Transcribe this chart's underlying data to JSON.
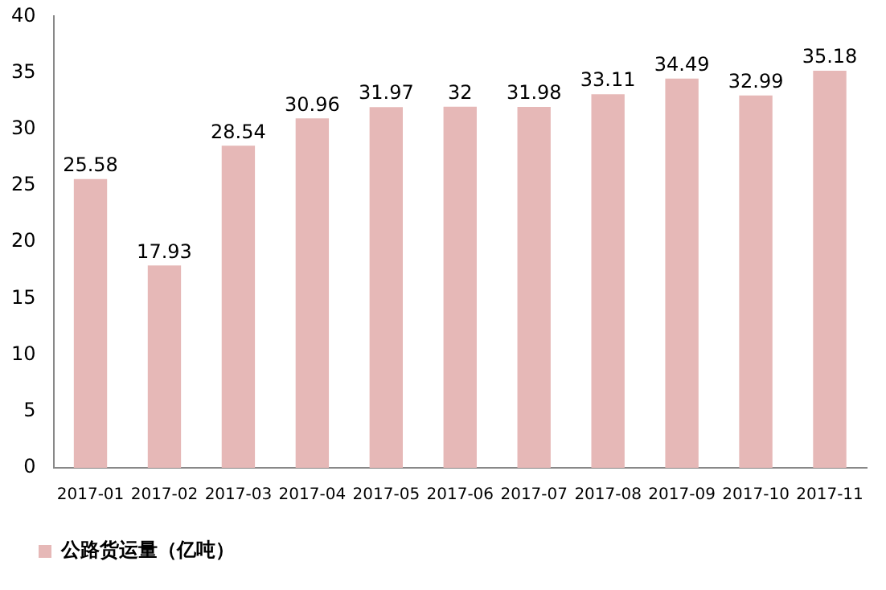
{
  "chart_data": {
    "type": "bar",
    "categories": [
      "2017-01",
      "2017-02",
      "2017-03",
      "2017-04",
      "2017-05",
      "2017-06",
      "2017-07",
      "2017-08",
      "2017-09",
      "2017-10",
      "2017-11"
    ],
    "series": [
      {
        "name": "公路货运量（亿吨）",
        "color": "#e6b8b7",
        "values": [
          25.58,
          17.93,
          28.54,
          30.96,
          31.97,
          32,
          31.98,
          33.11,
          34.49,
          32.99,
          35.18
        ]
      }
    ],
    "ylim": [
      0,
      40
    ],
    "yticks": [
      0,
      5,
      10,
      15,
      20,
      25,
      30,
      35,
      40
    ],
    "grid": false,
    "legend": "bottom",
    "data_labels": true
  }
}
